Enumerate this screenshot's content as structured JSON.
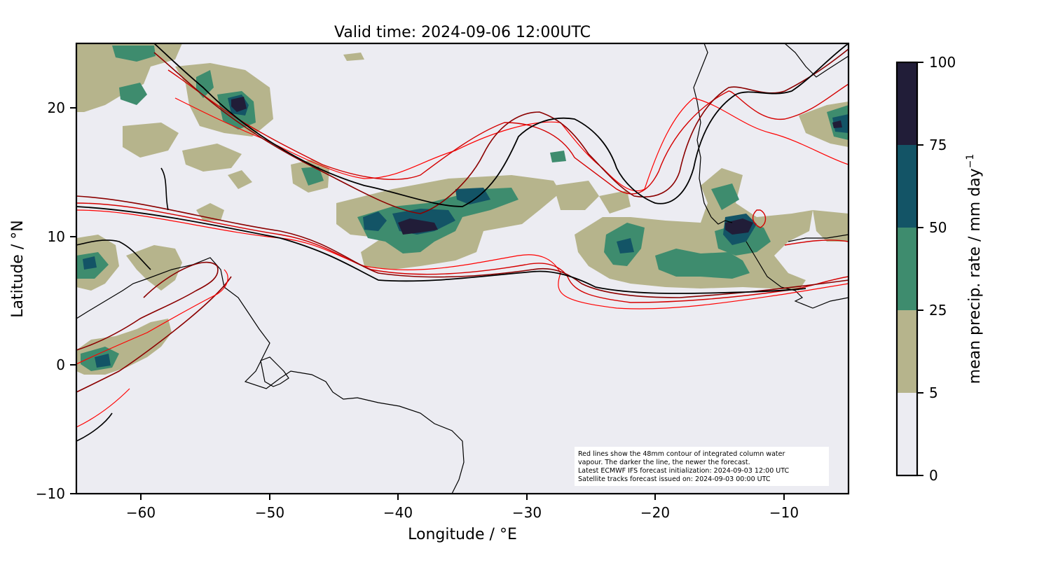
{
  "title": "Valid time: 2024-09-06 12:00UTC",
  "x_axis": {
    "label": "Longitude / °E",
    "ticks": [
      "−60",
      "−50",
      "−40",
      "−30",
      "−20",
      "−10"
    ]
  },
  "y_axis": {
    "label": "Latitude / °N",
    "ticks": [
      "20",
      "10",
      "0",
      "−10"
    ]
  },
  "colorbar": {
    "label": "mean precip. rate / mm day",
    "label_superscript": "−1",
    "ticks": [
      "100",
      "75",
      "50",
      "25",
      "5",
      "0"
    ],
    "levels": [
      {
        "range": "0-5",
        "color": "#ececf2"
      },
      {
        "range": "5-25",
        "color": "#b6b48c"
      },
      {
        "range": "25-50",
        "color": "#3e8c6e"
      },
      {
        "range": "50-75",
        "color": "#135466"
      },
      {
        "range": "75-100",
        "color": "#211d38"
      }
    ]
  },
  "info_box": {
    "line1": "Red lines show the 48mm contour of integrated column water",
    "line2": "vapour. The darker the line, the newer the forecast.",
    "line3": "Latest ECMWF IFS forecast initialization: 2024-09-03 12:00 UTC",
    "line4": "Satellite tracks forecast issued on: 2024-09-03 00:00 UTC"
  },
  "map": {
    "lon_range": [
      -65,
      -5
    ],
    "lat_range": [
      -10,
      25
    ],
    "background_color": "#ececf2",
    "contour_colors": [
      "#ff0000",
      "#d40000",
      "#8b0000",
      "#000000"
    ]
  }
}
